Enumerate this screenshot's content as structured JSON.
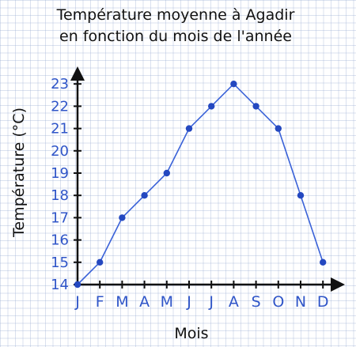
{
  "chart_data": {
    "type": "line",
    "title": "Température moyenne à Agadir",
    "subtitle": "en fonction du mois de l'année",
    "xlabel": "Mois",
    "ylabel": "Température (°C)",
    "categories": [
      "J",
      "F",
      "M",
      "A",
      "M",
      "J",
      "J",
      "A",
      "S",
      "O",
      "N",
      "D"
    ],
    "values": [
      14,
      15,
      17,
      18,
      19,
      21,
      22,
      23,
      22,
      21,
      18,
      15
    ],
    "ylim": [
      14,
      23
    ],
    "yticks": [
      14,
      15,
      16,
      17,
      18,
      19,
      20,
      21,
      22,
      23
    ],
    "grid": true,
    "line_color": "#3a62d8",
    "marker_color": "#2448c0",
    "axis_color": "#111111"
  }
}
